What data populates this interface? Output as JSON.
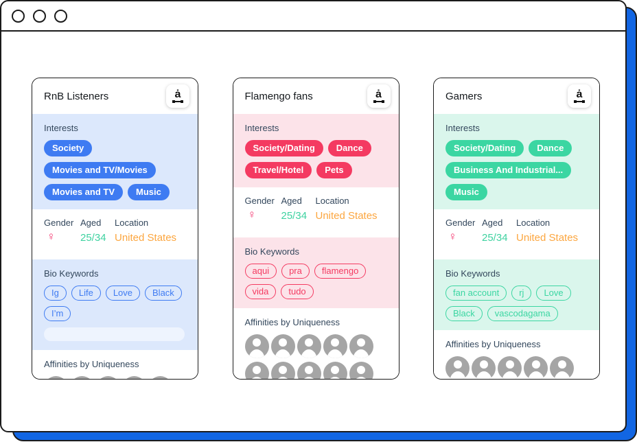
{
  "window": {
    "controls": [
      "window-control",
      "window-control",
      "window-control"
    ],
    "accent_color": "#1266e3",
    "border_color": "#1b1b1b"
  },
  "palette": {
    "female_symbol": "#f43a72",
    "aged_value": "#3ed2a0",
    "location_value": "#fca63f",
    "label_text": "#33475c",
    "avatar_gray": "#a5a5a5"
  },
  "cards": [
    {
      "title": "RnB Listeners",
      "logo_icon": "audiense-logo",
      "accent": "#3e7bf2",
      "section_bg": "#dce8fc",
      "interests": {
        "label": "Interests",
        "tags": [
          "Society",
          "Movies and TV/Movies",
          "Movies and TV",
          "Music"
        ]
      },
      "demographics": {
        "gender_label": "Gender",
        "aged_label": "Aged",
        "location_label": "Location",
        "gender_value": "♀",
        "aged_value": "25/34",
        "location_value": "United States"
      },
      "bio": {
        "label": "Bio Keywords",
        "keywords": [
          "Ig",
          "Life",
          "Love",
          "Black",
          "I’m"
        ]
      },
      "affinities": {
        "label": "Affinities by Uniqueness",
        "avatar_count": 10
      }
    },
    {
      "title": "Flamengo fans",
      "logo_icon": "audiense-logo",
      "accent": "#f43a61",
      "section_bg": "#fce3e9",
      "interests": {
        "label": "Interests",
        "tags": [
          "Society/Dating",
          "Dance",
          "Travel/Hotel",
          "Pets"
        ]
      },
      "demographics": {
        "gender_label": "Gender",
        "aged_label": "Aged",
        "location_label": "Location",
        "gender_value": "♀",
        "aged_value": "25/34",
        "location_value": "United States"
      },
      "bio": {
        "label": "Bio Keywords",
        "keywords": [
          "aqui",
          "pra",
          "flamengo",
          "vida",
          "tudo"
        ]
      },
      "affinities": {
        "label": "Affinities by Uniqueness",
        "avatar_count": 10
      }
    },
    {
      "title": "Gamers",
      "logo_icon": "audiense-logo",
      "accent": "#3bd6a2",
      "section_bg": "#daf6ec",
      "interests": {
        "label": "Interests",
        "tags": [
          "Society/Dating",
          "Dance",
          "Business And Industrial...",
          "Music"
        ]
      },
      "demographics": {
        "gender_label": "Gender",
        "aged_label": "Aged",
        "location_label": "Location",
        "gender_value": "♀",
        "aged_value": "25/34",
        "location_value": "United States"
      },
      "bio": {
        "label": "Bio Keywords",
        "keywords": [
          "fan account",
          "rj",
          "Love",
          "Black",
          "vascodagama"
        ]
      },
      "affinities": {
        "label": "Affinities by Uniqueness",
        "avatar_count": 10
      }
    }
  ]
}
